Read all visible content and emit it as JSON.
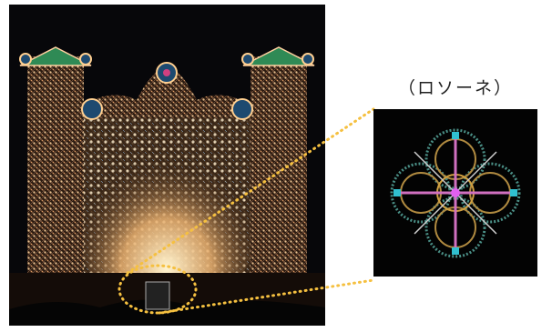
{
  "label": "（ロソーネ）"
}
